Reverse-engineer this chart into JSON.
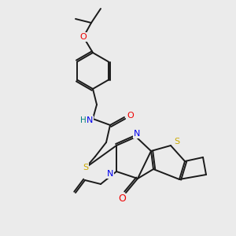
{
  "background_color": "#ebebeb",
  "bond_color": "#1a1a1a",
  "atom_colors": {
    "N": "#0000ee",
    "O": "#ee0000",
    "S": "#ccaa00",
    "H": "#008080",
    "C": "#1a1a1a"
  },
  "figsize": [
    3.0,
    3.0
  ],
  "dpi": 100,
  "lw": 1.4,
  "fontsize": 7.5
}
